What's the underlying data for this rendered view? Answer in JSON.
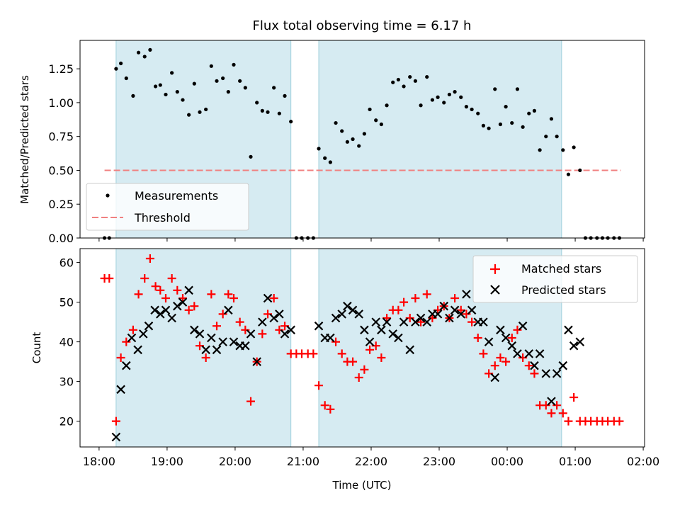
{
  "chart_data": [
    {
      "type": "scatter",
      "title": "Flux total observing time = 6.17 h",
      "ylabel": "Matched/Predicted stars",
      "xlabel": "",
      "xlim": [
        17.72,
        26.02
      ],
      "ylim": [
        0,
        1.46
      ],
      "yticks": [
        0,
        0.25,
        0.5,
        0.75,
        1.0,
        1.25
      ],
      "ytick_labels": [
        "0.00",
        "0.25",
        "0.50",
        "0.75",
        "1.00",
        "1.25"
      ],
      "shaded_intervals": [
        [
          18.25,
          20.82
        ],
        [
          21.23,
          24.8
        ]
      ],
      "legend": {
        "position": "bottom-left",
        "entries": [
          "Measurements",
          "Threshold"
        ]
      },
      "threshold": {
        "name": "Threshold",
        "value": 0.5,
        "x_range": [
          18.08,
          25.67
        ],
        "color": "#f08080"
      },
      "series": [
        {
          "name": "Measurements",
          "color": "#000000",
          "x": [
            18.08,
            18.15,
            18.25,
            18.32,
            18.4,
            18.5,
            18.58,
            18.67,
            18.75,
            18.83,
            18.9,
            18.98,
            19.07,
            19.15,
            19.23,
            19.32,
            19.4,
            19.48,
            19.57,
            19.65,
            19.73,
            19.82,
            19.9,
            19.98,
            20.07,
            20.15,
            20.23,
            20.32,
            20.4,
            20.48,
            20.57,
            20.65,
            20.73,
            20.82,
            20.9,
            20.98,
            21.07,
            21.15,
            21.23,
            21.32,
            21.4,
            21.48,
            21.57,
            21.65,
            21.73,
            21.82,
            21.9,
            21.98,
            22.07,
            22.15,
            22.23,
            22.32,
            22.4,
            22.48,
            22.57,
            22.65,
            22.73,
            22.82,
            22.9,
            22.98,
            23.07,
            23.15,
            23.23,
            23.32,
            23.4,
            23.48,
            23.57,
            23.65,
            23.73,
            23.82,
            23.9,
            23.98,
            24.07,
            24.15,
            24.23,
            24.32,
            24.4,
            24.48,
            24.57,
            24.65,
            24.73,
            24.82,
            24.9,
            24.98,
            25.07,
            25.15,
            25.23,
            25.32,
            25.4,
            25.48,
            25.57,
            25.65
          ],
          "y": [
            0,
            0,
            1.25,
            1.29,
            1.18,
            1.05,
            1.37,
            1.34,
            1.39,
            1.12,
            1.13,
            1.06,
            1.22,
            1.08,
            1.02,
            0.91,
            1.14,
            0.93,
            0.95,
            1.27,
            1.16,
            1.18,
            1.08,
            1.28,
            1.16,
            1.11,
            0.6,
            1.0,
            0.94,
            0.93,
            1.11,
            0.92,
            1.05,
            0.86,
            0,
            0,
            0,
            0,
            0.66,
            0.59,
            0.56,
            0.85,
            0.79,
            0.71,
            0.73,
            0.68,
            0.77,
            0.95,
            0.87,
            0.84,
            0.98,
            1.15,
            1.17,
            1.12,
            1.19,
            1.16,
            0.98,
            1.19,
            1.02,
            1.04,
            1.0,
            1.06,
            1.08,
            1.04,
            0.97,
            0.95,
            0.92,
            0.83,
            0.81,
            1.1,
            0.84,
            0.97,
            0.85,
            1.1,
            0.82,
            0.92,
            0.94,
            0.65,
            0.75,
            0.88,
            0.75,
            0.65,
            0.47,
            0.67,
            0.5,
            0,
            0,
            0,
            0,
            0,
            0,
            0
          ]
        }
      ]
    },
    {
      "type": "scatter",
      "title": "",
      "ylabel": "Count",
      "xlabel": "Time (UTC)",
      "xlim": [
        17.72,
        26.02
      ],
      "ylim": [
        13.5,
        63.5
      ],
      "yticks": [
        20,
        30,
        40,
        50,
        60
      ],
      "ytick_labels": [
        "20",
        "30",
        "40",
        "50",
        "60"
      ],
      "xticks": [
        18,
        19,
        20,
        21,
        22,
        23,
        24,
        25,
        26
      ],
      "xtick_labels": [
        "18:00",
        "19:00",
        "20:00",
        "21:00",
        "22:00",
        "23:00",
        "00:00",
        "01:00",
        "02:00"
      ],
      "shaded_intervals": [
        [
          18.25,
          20.82
        ],
        [
          21.23,
          24.8
        ]
      ],
      "legend": {
        "position": "top-right",
        "entries": [
          "Matched stars",
          "Predicted stars"
        ]
      },
      "series": [
        {
          "name": "Matched stars",
          "color": "#ff0000",
          "marker": "plus",
          "x": [
            18.08,
            18.15,
            18.25,
            18.32,
            18.4,
            18.5,
            18.58,
            18.67,
            18.75,
            18.83,
            18.9,
            18.98,
            19.07,
            19.15,
            19.23,
            19.32,
            19.4,
            19.48,
            19.57,
            19.65,
            19.73,
            19.82,
            19.9,
            19.98,
            20.07,
            20.15,
            20.23,
            20.32,
            20.4,
            20.48,
            20.57,
            20.65,
            20.73,
            20.82,
            20.9,
            20.98,
            21.07,
            21.15,
            21.23,
            21.32,
            21.4,
            21.48,
            21.57,
            21.65,
            21.73,
            21.82,
            21.9,
            21.98,
            22.07,
            22.15,
            22.23,
            22.32,
            22.4,
            22.48,
            22.57,
            22.65,
            22.73,
            22.82,
            22.9,
            22.98,
            23.07,
            23.15,
            23.23,
            23.32,
            23.4,
            23.48,
            23.57,
            23.65,
            23.73,
            23.82,
            23.9,
            23.98,
            24.07,
            24.15,
            24.23,
            24.32,
            24.4,
            24.48,
            24.57,
            24.65,
            24.73,
            24.82,
            24.9,
            24.98,
            25.07,
            25.15,
            25.23,
            25.32,
            25.4,
            25.48,
            25.57,
            25.65
          ],
          "y": [
            56,
            56,
            20,
            36,
            40,
            43,
            52,
            56,
            61,
            54,
            53,
            51,
            56,
            53,
            51,
            48,
            49,
            39,
            36,
            52,
            44,
            47,
            52,
            51,
            45,
            43,
            25,
            35,
            42,
            47,
            51,
            43,
            44,
            37,
            37,
            37,
            37,
            37,
            29,
            24,
            23,
            40,
            37,
            35,
            35,
            31,
            33,
            38,
            39,
            36,
            46,
            48,
            48,
            50,
            46,
            51,
            45,
            52,
            46,
            48,
            49,
            46,
            51,
            48,
            47,
            45,
            41,
            37,
            32,
            34,
            36,
            35,
            41,
            43,
            36,
            34,
            32,
            24,
            24,
            22,
            24,
            22,
            20,
            26,
            20,
            20,
            20,
            20,
            20,
            20,
            20,
            20
          ]
        },
        {
          "name": "Predicted stars",
          "color": "#000000",
          "marker": "x",
          "x": [
            18.25,
            18.32,
            18.4,
            18.48,
            18.57,
            18.65,
            18.73,
            18.82,
            18.9,
            18.98,
            19.07,
            19.15,
            19.23,
            19.32,
            19.4,
            19.48,
            19.57,
            19.65,
            19.73,
            19.82,
            19.9,
            19.98,
            20.07,
            20.15,
            20.23,
            20.32,
            20.4,
            20.48,
            20.57,
            20.65,
            20.73,
            20.82,
            21.23,
            21.32,
            21.4,
            21.48,
            21.57,
            21.65,
            21.73,
            21.82,
            21.9,
            21.98,
            22.07,
            22.15,
            22.23,
            22.32,
            22.4,
            22.48,
            22.57,
            22.65,
            22.73,
            22.82,
            22.9,
            22.98,
            23.07,
            23.15,
            23.23,
            23.32,
            23.4,
            23.48,
            23.57,
            23.65,
            23.73,
            23.82,
            23.9,
            23.98,
            24.07,
            24.15,
            24.23,
            24.32,
            24.4,
            24.48,
            24.57,
            24.65,
            24.73,
            24.82,
            24.9,
            24.98,
            25.07
          ],
          "y": [
            16,
            28,
            34,
            41,
            38,
            42,
            44,
            48,
            47,
            48,
            46,
            49,
            50,
            53,
            43,
            42,
            38,
            41,
            38,
            40,
            48,
            40,
            39,
            39,
            42,
            35,
            45,
            51,
            46,
            47,
            42,
            43,
            44,
            41,
            41,
            46,
            47,
            49,
            48,
            47,
            43,
            40,
            45,
            43,
            45,
            42,
            41,
            45,
            38,
            45,
            46,
            45,
            47,
            47,
            49,
            46,
            48,
            47,
            52,
            48,
            45,
            45,
            40,
            31,
            43,
            41,
            39,
            37,
            44,
            37,
            34,
            37,
            32,
            25,
            32,
            34,
            43,
            39,
            40
          ]
        }
      ]
    }
  ]
}
